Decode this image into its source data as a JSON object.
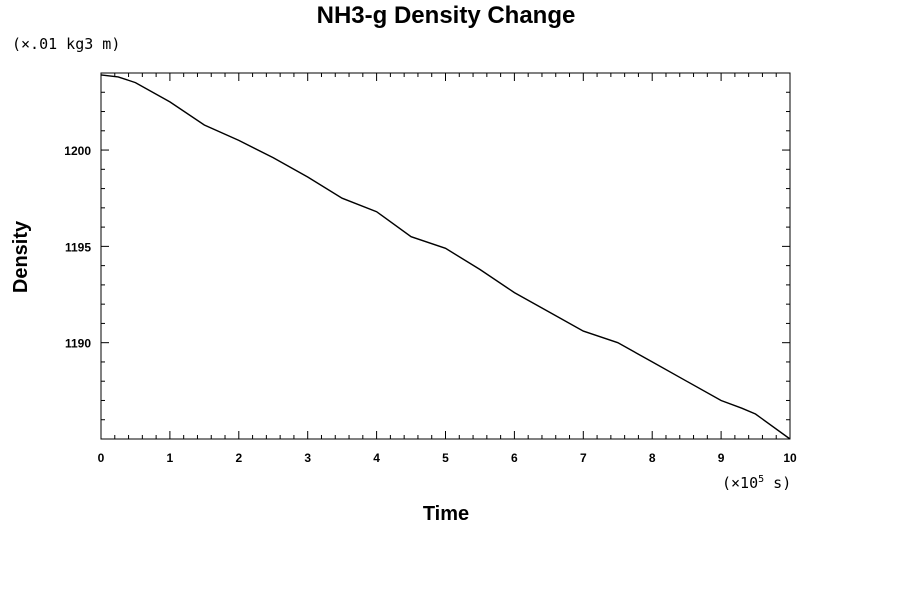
{
  "chart_data": {
    "type": "line",
    "title": "NH3-g Density Change",
    "xlabel": "Time",
    "ylabel": "Density",
    "x_unit_prefix": "(×10",
    "x_unit_exponent": "5",
    "x_unit_suffix": " s)",
    "y_unit": "(×.01 kg3 m)",
    "xlim": [
      0,
      10
    ],
    "ylim": [
      1185,
      1204
    ],
    "x_ticks": [
      "0",
      "1",
      "2",
      "3",
      "4",
      "5",
      "6",
      "7",
      "8",
      "9",
      "10"
    ],
    "y_ticks": [
      "1190",
      "1195",
      "1200"
    ],
    "grid": false,
    "series": [
      {
        "x": [
          0,
          0.25,
          0.5,
          1.0,
          1.5,
          2.0,
          2.5,
          3.0,
          3.5,
          4.0,
          4.5,
          5.0,
          5.5,
          6.0,
          6.5,
          7.0,
          7.5,
          8.0,
          8.5,
          9.0,
          9.3,
          9.5,
          10.0
        ],
        "y": [
          1203.9,
          1203.8,
          1203.5,
          1202.5,
          1201.3,
          1200.5,
          1199.6,
          1198.6,
          1197.5,
          1196.8,
          1195.5,
          1194.9,
          1193.8,
          1192.6,
          1191.6,
          1190.6,
          1190.0,
          1189.0,
          1188.0,
          1187.0,
          1186.6,
          1186.3,
          1185.0
        ]
      }
    ]
  }
}
